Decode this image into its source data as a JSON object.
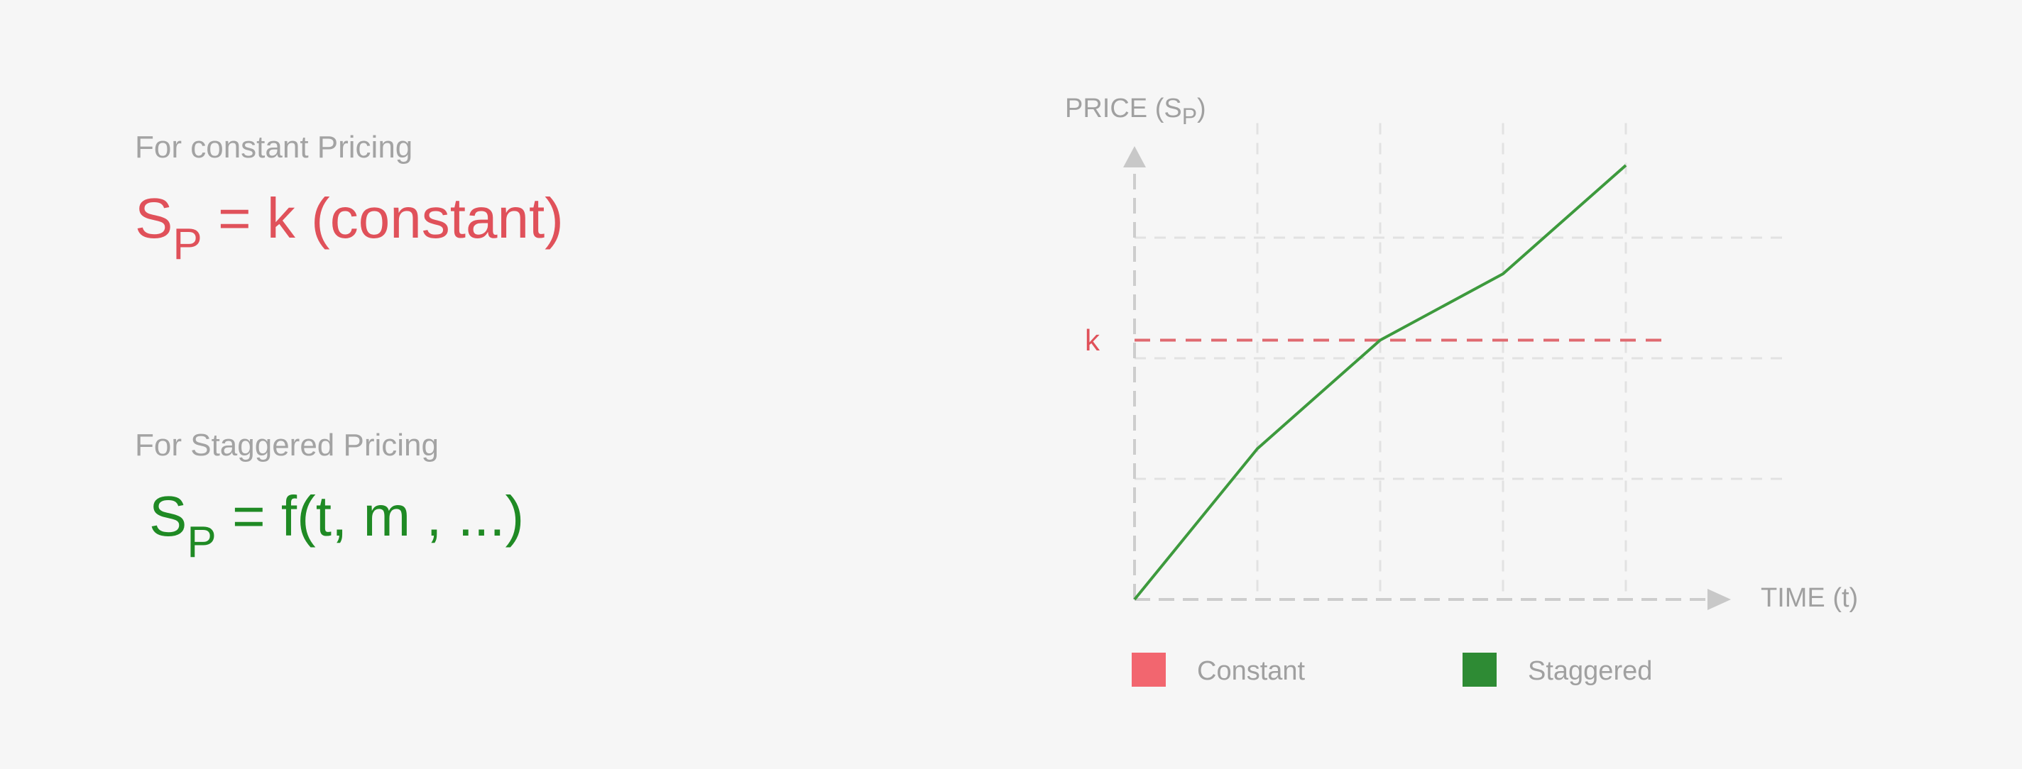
{
  "constant": {
    "caption": "For constant Pricing",
    "formula_main": "S",
    "formula_sub": "P",
    "formula_rest": " = k (constant)",
    "color": "#e0515a"
  },
  "staggered": {
    "caption": "For Staggered Pricing",
    "formula_main": "S",
    "formula_sub": "P",
    "formula_rest": " = f(t, m , ...)",
    "color": "#1f8a24"
  },
  "chart_data": {
    "type": "line",
    "ylabel": "PRICE (S",
    "ylabel_sub": "P",
    "ylabel_end": ")",
    "xlabel": "TIME (t)",
    "k_label": "k",
    "grid": true,
    "legend_position": "bottom",
    "xlim": [
      0,
      5
    ],
    "ylim": [
      0,
      4
    ],
    "series": [
      {
        "name": "Constant",
        "color": "#f2666f",
        "line_color": "#e06a70",
        "dashed": true,
        "x": [
          0,
          4.3
        ],
        "y": [
          2.15,
          2.15
        ]
      },
      {
        "name": "Staggered",
        "color": "#2e8b34",
        "line_color": "#3d9a3d",
        "dashed": false,
        "x": [
          0,
          1,
          2,
          3,
          4
        ],
        "y": [
          0,
          1.25,
          2.15,
          2.7,
          3.6
        ]
      }
    ]
  }
}
